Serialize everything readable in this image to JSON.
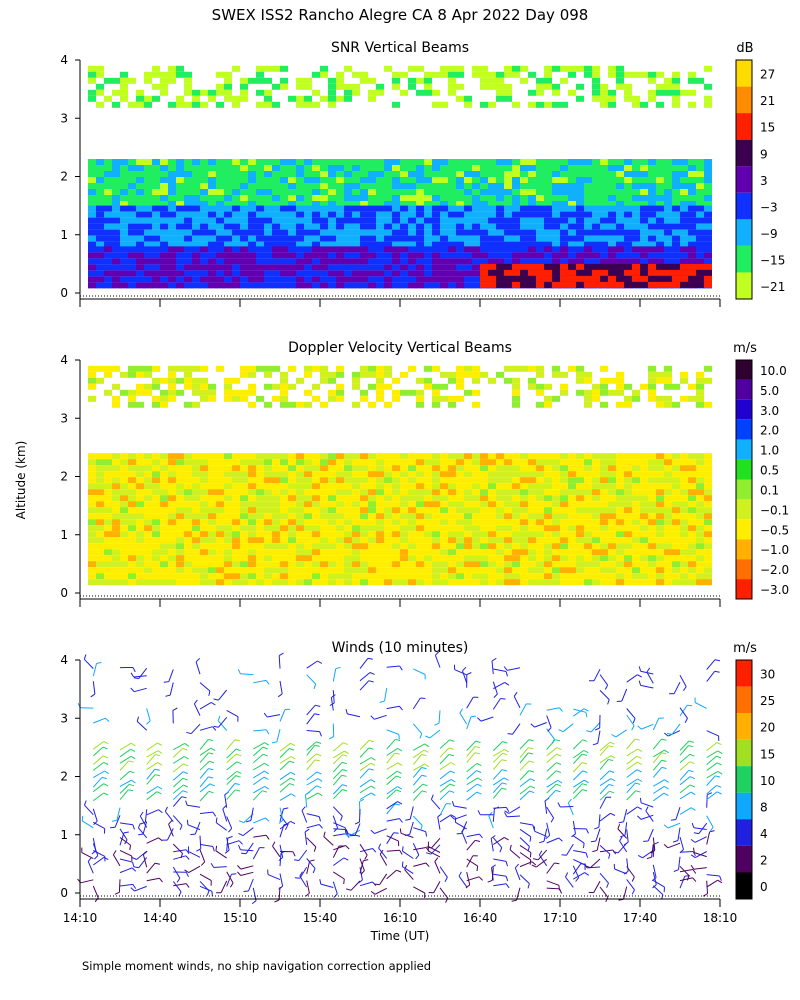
{
  "title": "SWEX ISS2 Rancho Alegre CA    8 Apr 2022 Day 098",
  "footnote": "Simple moment winds, no ship navigation correction applied",
  "shared": {
    "ylabel": "Altitude (km)",
    "xlabel": "Time (UT)",
    "time_ticks": [
      "14:10",
      "14:40",
      "15:10",
      "15:40",
      "16:10",
      "16:40",
      "17:10",
      "17:40",
      "18:10"
    ],
    "altitude_ticks": [
      "0",
      "1",
      "2",
      "3",
      "4"
    ]
  },
  "chart_data": [
    {
      "type": "heatmap",
      "title": "SNR Vertical Beams",
      "xlabel": "Time (UT)",
      "ylabel": "Altitude (km)",
      "xlim": [
        "14:10",
        "18:10"
      ],
      "ylim": [
        0,
        4
      ],
      "colorbar": {
        "unit": "dB",
        "tick_labels": [
          "27",
          "21",
          "15",
          "9",
          "3",
          "−3",
          "−9",
          "−15",
          "−21"
        ],
        "colors": [
          "#ffdc00",
          "#ff8c00",
          "#ff2000",
          "#3c0050",
          "#6000b0",
          "#1030ff",
          "#10b0ff",
          "#20ee60",
          "#c0ff20"
        ]
      },
      "layers": [
        {
          "alt_range_km": [
            3.2,
            3.9
          ],
          "snr_db": -20,
          "coverage": "patchy"
        },
        {
          "alt_range_km": [
            2.3,
            3.2
          ],
          "snr_db": null,
          "coverage": "mostly missing"
        },
        {
          "alt_range_km": [
            1.5,
            2.3
          ],
          "snr_db": -14,
          "coverage": "continuous"
        },
        {
          "alt_range_km": [
            0.8,
            1.5
          ],
          "snr_db": -6,
          "coverage": "continuous"
        },
        {
          "alt_range_km": [
            0.15,
            0.8
          ],
          "snr_db": 0,
          "coverage": "continuous"
        },
        {
          "alt_range_km": [
            0.15,
            0.5
          ],
          "time_range": [
            "16:40",
            "18:10"
          ],
          "snr_db": 12,
          "coverage": "continuous"
        }
      ]
    },
    {
      "type": "heatmap",
      "title": "Doppler Velocity Vertical Beams",
      "xlabel": "Time (UT)",
      "ylabel": "Altitude (km)",
      "xlim": [
        "14:10",
        "18:10"
      ],
      "ylim": [
        0,
        4
      ],
      "colorbar": {
        "unit": "m/s",
        "tick_labels": [
          "10.0",
          "5.0",
          "3.0",
          "2.0",
          "1.0",
          "0.5",
          "0.1",
          "−0.1",
          "−0.5",
          "−1.0",
          "−2.0",
          "−3.0"
        ],
        "colors": [
          "#300030",
          "#5000a0",
          "#2000d0",
          "#0040ff",
          "#10b0ff",
          "#20e020",
          "#90ee30",
          "#d0f020",
          "#ffee00",
          "#ffb000",
          "#ff7000",
          "#ff2000"
        ]
      },
      "layers": [
        {
          "alt_range_km": [
            3.2,
            3.9
          ],
          "velocity_ms": -0.2,
          "coverage": "patchy"
        },
        {
          "alt_range_km": [
            0.15,
            2.4
          ],
          "velocity_ms": -0.4,
          "coverage": "continuous"
        }
      ]
    },
    {
      "type": "scatter",
      "subtype": "wind barbs",
      "title": "Winds (10 minutes)",
      "xlabel": "Time (UT)",
      "ylabel": "Altitude (km)",
      "xlim": [
        "14:10",
        "18:10"
      ],
      "ylim": [
        0,
        4
      ],
      "interval_minutes": 10,
      "colorbar": {
        "unit": "m/s",
        "tick_labels": [
          "30",
          "25",
          "20",
          "15",
          "10",
          "8",
          "4",
          "2",
          "0"
        ],
        "colors": [
          "#ff2000",
          "#ff7000",
          "#ffb000",
          "#a0e020",
          "#20d060",
          "#10a8ff",
          "#2020e0",
          "#500060",
          "#000000"
        ]
      },
      "profile": [
        {
          "alt_km": 0.3,
          "speed_ms": 3
        },
        {
          "alt_km": 0.8,
          "speed_ms": 3
        },
        {
          "alt_km": 1.3,
          "speed_ms": 5
        },
        {
          "alt_km": 1.8,
          "speed_ms": 9
        },
        {
          "alt_km": 2.3,
          "speed_ms": 12
        },
        {
          "alt_km": 3.0,
          "speed_ms": 6
        },
        {
          "alt_km": 3.7,
          "speed_ms": 5
        }
      ]
    }
  ]
}
